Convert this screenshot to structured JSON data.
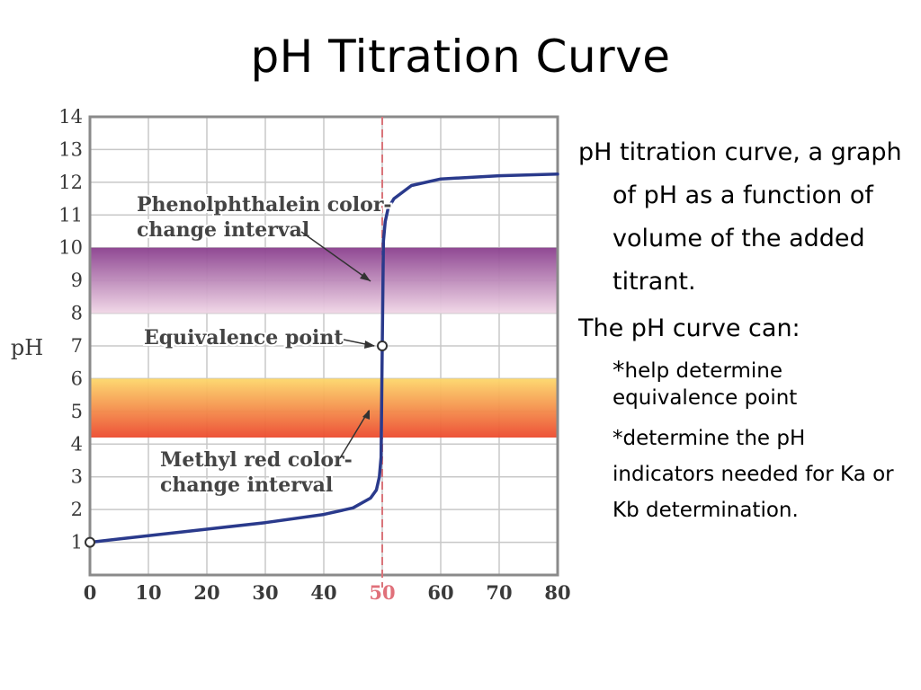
{
  "slide": {
    "title": "pH Titration Curve"
  },
  "text_panel": {
    "bullets": [
      "pH titration curve, a graph of pH as a function of volume of the added titrant.",
      "The pH curve can:"
    ],
    "sub_bullets": [
      {
        "star": " *",
        "text": "help determine equivalence point"
      },
      {
        "star": "*",
        "text": "determine the pH indicators needed for Ka or Kb determination."
      }
    ]
  },
  "colors": {
    "phenolphthalein_band_top": "#8a3f8e",
    "phenolphthalein_band_bottom": "#f0d6e6",
    "methyl_red_band_top": "#fdd76a",
    "methyl_red_band_bottom": "#ec4a2e",
    "curve": "#2a3a8c",
    "equivalence_line": "#d9747a",
    "grid": "#c8c8c8",
    "frame": "#8a8a8a",
    "tick_label": "#3a3a3a",
    "equivalence_tick_label": "#e0707a"
  },
  "chart_data": {
    "type": "line",
    "ylabel": "pH",
    "xlim": [
      0,
      80
    ],
    "ylim": [
      0,
      14
    ],
    "grid": true,
    "x_ticks": [
      "0",
      "10",
      "20",
      "30",
      "40",
      "50",
      "60",
      "70",
      "80"
    ],
    "y_ticks": [
      "1",
      "2",
      "3",
      "4",
      "5",
      "6",
      "7",
      "8",
      "9",
      "10",
      "11",
      "12",
      "13",
      "14"
    ],
    "series": [
      {
        "x": [
          0,
          5,
          10,
          20,
          30,
          40,
          45,
          48,
          49,
          49.5,
          49.8,
          50,
          50.2,
          50.5,
          51,
          52,
          55,
          60,
          70,
          80
        ],
        "y": [
          1.0,
          1.1,
          1.2,
          1.4,
          1.6,
          1.85,
          2.05,
          2.35,
          2.6,
          3.0,
          3.6,
          7.0,
          10.2,
          10.8,
          11.2,
          11.5,
          11.9,
          12.1,
          12.2,
          12.25
        ]
      }
    ],
    "bands": [
      {
        "label": "Phenolphthalein color-\nchange interval",
        "y_range": [
          8,
          10
        ]
      },
      {
        "label": "Methyl red color-\nchange interval",
        "y_range": [
          4.2,
          6.0
        ]
      }
    ],
    "annotations": [
      {
        "label": "Equivalence point",
        "x": 50,
        "y": 7
      }
    ],
    "equivalence_x": 50,
    "marked_points": [
      {
        "x": 0,
        "y": 1.0
      },
      {
        "x": 50,
        "y": 7.0
      }
    ]
  }
}
